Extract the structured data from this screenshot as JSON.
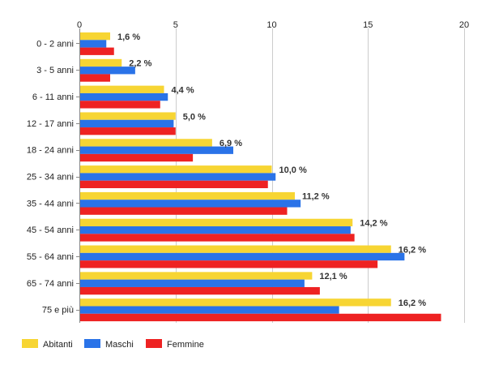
{
  "chart_data": {
    "type": "bar",
    "orientation": "horizontal",
    "categories": [
      "0 - 2 anni",
      "3 - 5 anni",
      "6 - 11 anni",
      "12 - 17 anni",
      "18 - 24 anni",
      "25 - 34 anni",
      "35 - 44 anni",
      "45 - 54 anni",
      "55 - 64 anni",
      "65 - 74 anni",
      "75 e più"
    ],
    "series": [
      {
        "name": "Abitanti",
        "color": "#f7d533",
        "values": [
          1.6,
          2.2,
          4.4,
          5.0,
          6.9,
          10.0,
          11.2,
          14.2,
          16.2,
          12.1,
          16.2
        ]
      },
      {
        "name": "Maschi",
        "color": "#2a73e8",
        "values": [
          1.4,
          2.9,
          4.6,
          4.9,
          8.0,
          10.2,
          11.5,
          14.1,
          16.9,
          11.7,
          13.5
        ]
      },
      {
        "name": "Femmine",
        "color": "#ee2222",
        "values": [
          1.8,
          1.6,
          4.2,
          5.0,
          5.9,
          9.8,
          10.8,
          14.3,
          15.5,
          12.5,
          18.8
        ]
      }
    ],
    "data_labels": [
      "1,6 %",
      "2,2 %",
      "4,4 %",
      "5,0 %",
      "6,9 %",
      "10,0 %",
      "11,2 %",
      "14,2 %",
      "16,2 %",
      "12,1 %",
      "16,2 %"
    ],
    "x_ticks": [
      0,
      5,
      10,
      15,
      20
    ],
    "xlim": [
      0,
      20
    ],
    "x_axis_position": "top",
    "grid": true,
    "legend_position": "bottom-left",
    "title": "",
    "xlabel": "",
    "ylabel": ""
  }
}
